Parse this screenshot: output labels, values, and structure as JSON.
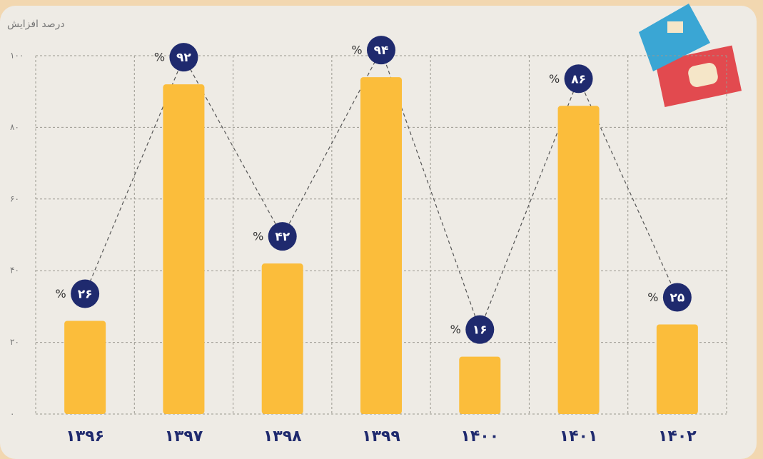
{
  "chart_data": {
    "type": "bar",
    "y_label": "درصد افزایش",
    "categories": [
      "۱۳۹۶",
      "۱۳۹۷",
      "۱۳۹۸",
      "۱۳۹۹",
      "۱۴۰۰",
      "۱۴۰۱",
      "۱۴۰۲"
    ],
    "values": [
      26,
      92,
      42,
      94,
      16,
      86,
      25
    ],
    "value_labels": [
      "۲۶",
      "۹۲",
      "۴۲",
      "۹۴",
      "۱۶",
      "۸۶",
      "۲۵"
    ],
    "unit_label": "%",
    "color": "#fbbd3b",
    "badge_color": "#1f2a6e",
    "ylim": [
      0,
      100
    ],
    "yticks": [
      {
        "value": 0,
        "label": "۰"
      },
      {
        "value": 20,
        "label": "۲۰"
      },
      {
        "value": 40,
        "label": "۴۰"
      },
      {
        "value": 60,
        "label": "۶۰"
      },
      {
        "value": 80,
        "label": "۸۰"
      },
      {
        "value": 100,
        "label": "۱۰۰"
      }
    ],
    "grid": true
  }
}
